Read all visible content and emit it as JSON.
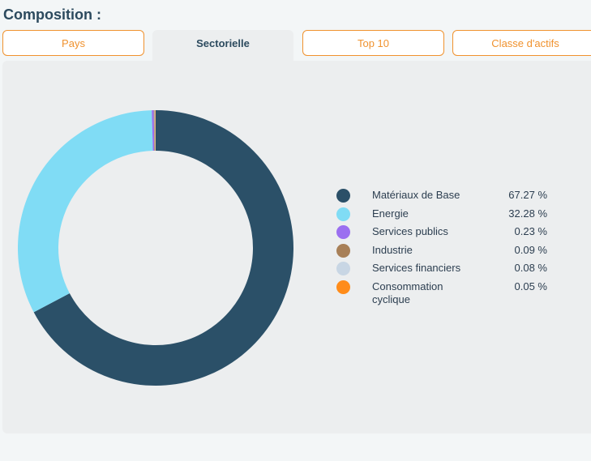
{
  "header": {
    "title": "Composition :"
  },
  "tabs": [
    {
      "label": "Pays",
      "active": false
    },
    {
      "label": "Sectorielle",
      "active": true
    },
    {
      "label": "Top 10",
      "active": false
    },
    {
      "label": "Classe d'actifs",
      "active": false
    }
  ],
  "chart_data": {
    "type": "pie",
    "categories": [
      "Matériaux de Base",
      "Energie",
      "Services publics",
      "Industrie",
      "Services financiers",
      "Consommation cyclique"
    ],
    "values": [
      67.27,
      32.28,
      0.23,
      0.09,
      0.08,
      0.05
    ],
    "value_labels": [
      "67.27 %",
      "32.28 %",
      "0.23 %",
      "0.09 %",
      "0.08 %",
      "0.05 %"
    ],
    "colors": [
      "#2b5068",
      "#80dcf5",
      "#9b6ff0",
      "#a88058",
      "#c8d6e4",
      "#ff8c1a"
    ]
  }
}
